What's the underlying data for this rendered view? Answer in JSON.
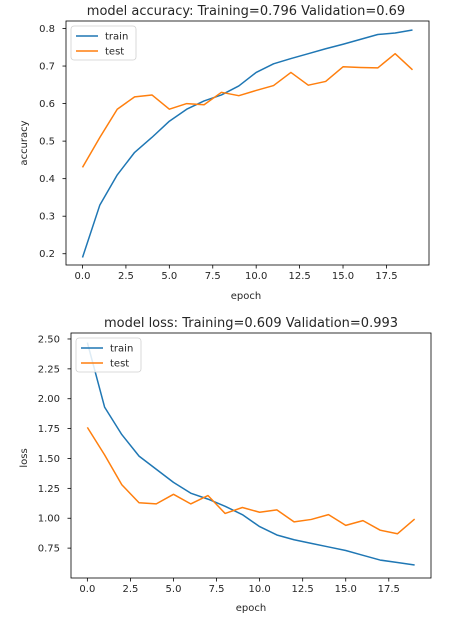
{
  "chart_data": [
    {
      "type": "line",
      "title": "model accuracy:  Training=0.796 Validation=0.69",
      "xlabel": "epoch",
      "ylabel": "accuracy",
      "xlim": [
        -0.95,
        19.95
      ],
      "ylim": [
        0.17,
        0.82
      ],
      "xticks": [
        0.0,
        2.5,
        5.0,
        7.5,
        10.0,
        12.5,
        15.0,
        17.5
      ],
      "xtick_labels": [
        "0.0",
        "2.5",
        "5.0",
        "7.5",
        "10.0",
        "12.5",
        "15.0",
        "17.5"
      ],
      "yticks": [
        0.2,
        0.3,
        0.4,
        0.5,
        0.6,
        0.7,
        0.8
      ],
      "ytick_labels": [
        "0.2",
        "0.3",
        "0.4",
        "0.5",
        "0.6",
        "0.7",
        "0.8"
      ],
      "grid": false,
      "legend_position": "upper-left",
      "x": [
        0,
        1,
        2,
        3,
        4,
        5,
        6,
        7,
        8,
        9,
        10,
        11,
        12,
        13,
        14,
        15,
        16,
        17,
        18,
        19
      ],
      "series": [
        {
          "name": "train",
          "color": "#1f77b4",
          "values": [
            0.19,
            0.33,
            0.41,
            0.47,
            0.51,
            0.553,
            0.585,
            0.607,
            0.623,
            0.647,
            0.683,
            0.706,
            0.72,
            0.733,
            0.746,
            0.758,
            0.771,
            0.784,
            0.788,
            0.796
          ]
        },
        {
          "name": "test",
          "color": "#ff7f0e",
          "values": [
            0.43,
            0.51,
            0.585,
            0.618,
            0.623,
            0.585,
            0.6,
            0.597,
            0.63,
            0.621,
            0.635,
            0.648,
            0.683,
            0.649,
            0.659,
            0.698,
            0.696,
            0.695,
            0.733,
            0.69
          ]
        }
      ]
    },
    {
      "type": "line",
      "title": "model loss:  Training=0.609 Validation=0.993",
      "xlabel": "epoch",
      "ylabel": "loss",
      "xlim": [
        -0.95,
        19.95
      ],
      "ylim": [
        0.5,
        2.55
      ],
      "xticks": [
        0.0,
        2.5,
        5.0,
        7.5,
        10.0,
        12.5,
        15.0,
        17.5
      ],
      "xtick_labels": [
        "0.0",
        "2.5",
        "5.0",
        "7.5",
        "10.0",
        "12.5",
        "15.0",
        "17.5"
      ],
      "yticks": [
        0.75,
        1.0,
        1.25,
        1.5,
        1.75,
        2.0,
        2.25,
        2.5
      ],
      "ytick_labels": [
        "0.75",
        "1.00",
        "1.25",
        "1.50",
        "1.75",
        "2.00",
        "2.25",
        "2.50"
      ],
      "grid": false,
      "legend_position": "upper-left",
      "x": [
        0,
        1,
        2,
        3,
        4,
        5,
        6,
        7,
        8,
        9,
        10,
        11,
        12,
        13,
        14,
        15,
        16,
        17,
        18,
        19
      ],
      "series": [
        {
          "name": "train",
          "color": "#1f77b4",
          "values": [
            2.47,
            1.93,
            1.7,
            1.52,
            1.41,
            1.3,
            1.21,
            1.16,
            1.1,
            1.03,
            0.93,
            0.86,
            0.82,
            0.79,
            0.76,
            0.73,
            0.69,
            0.65,
            0.63,
            0.609
          ]
        },
        {
          "name": "test",
          "color": "#ff7f0e",
          "values": [
            1.76,
            1.53,
            1.28,
            1.13,
            1.12,
            1.2,
            1.12,
            1.19,
            1.04,
            1.09,
            1.05,
            1.07,
            0.97,
            0.99,
            1.03,
            0.94,
            0.98,
            0.9,
            0.87,
            0.993
          ]
        }
      ]
    }
  ]
}
